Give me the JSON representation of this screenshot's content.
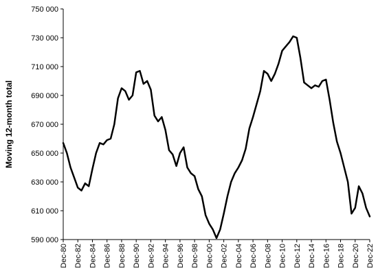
{
  "chart_data": {
    "type": "line",
    "title": "",
    "xlabel": "",
    "ylabel": "Moving 12-month total",
    "ylim": [
      590000,
      750000
    ],
    "yticks": [
      590000,
      610000,
      630000,
      650000,
      670000,
      690000,
      710000,
      730000,
      750000
    ],
    "ytick_labels": [
      "590 000",
      "610 000",
      "630 000",
      "650 000",
      "670 000",
      "690 000",
      "710 000",
      "730 000",
      "750 000"
    ],
    "xlim": [
      "1980-12",
      "2022-12"
    ],
    "xtick_labels": [
      "Dec-80",
      "Dec-82",
      "Dec-84",
      "Dec-86",
      "Dec-88",
      "Dec-90",
      "Dec-92",
      "Dec-94",
      "Dec-96",
      "Dec-98",
      "Dec-00",
      "Dec-02",
      "Dec-04",
      "Dec-06",
      "Dec-08",
      "Dec-10",
      "Dec-12",
      "Dec-14",
      "Dec-16",
      "Dec-18",
      "Dec-20",
      "Dec-22"
    ],
    "grid": false,
    "legend": "none",
    "line_color": "#000000",
    "series": [
      {
        "x": [
          "1980-12",
          "1981-06",
          "1981-12",
          "1982-06",
          "1982-12",
          "1983-06",
          "1983-12",
          "1984-06",
          "1984-12",
          "1985-06",
          "1985-12",
          "1986-06",
          "1986-12",
          "1987-06",
          "1987-12",
          "1988-06",
          "1988-12",
          "1989-06",
          "1989-12",
          "1990-06",
          "1990-12",
          "1991-06",
          "1991-12",
          "1992-06",
          "1992-12",
          "1993-06",
          "1993-12",
          "1994-06",
          "1994-12",
          "1995-06",
          "1995-12",
          "1996-06",
          "1996-12",
          "1997-06",
          "1997-12",
          "1998-06",
          "1998-12",
          "1999-06",
          "1999-12",
          "2000-06",
          "2000-12",
          "2001-06",
          "2001-12",
          "2002-06",
          "2002-12",
          "2003-06",
          "2003-12",
          "2004-06",
          "2004-12",
          "2005-06",
          "2005-12",
          "2006-06",
          "2006-12",
          "2007-06",
          "2007-12",
          "2008-06",
          "2008-12",
          "2009-06",
          "2009-12",
          "2010-06",
          "2010-12",
          "2011-06",
          "2011-12",
          "2012-06",
          "2012-12",
          "2013-06",
          "2013-12",
          "2014-06",
          "2014-12",
          "2015-06",
          "2015-12",
          "2016-06",
          "2016-12",
          "2017-06",
          "2017-12",
          "2018-06",
          "2018-12",
          "2019-06",
          "2019-12",
          "2020-06",
          "2020-12",
          "2021-06",
          "2021-12",
          "2022-06",
          "2022-12"
        ],
        "values": [
          657000,
          650000,
          640000,
          633000,
          626000,
          624000,
          629000,
          627000,
          639000,
          650000,
          657000,
          656000,
          659000,
          660000,
          670000,
          688000,
          695000,
          693000,
          687000,
          690000,
          706000,
          707000,
          698000,
          700000,
          694000,
          676000,
          672000,
          675000,
          666000,
          652000,
          649000,
          641000,
          650000,
          654000,
          640000,
          636000,
          634000,
          625000,
          620000,
          607000,
          601000,
          597000,
          591000,
          597000,
          608000,
          620000,
          630000,
          636000,
          640000,
          645000,
          653000,
          667000,
          675000,
          684000,
          693000,
          707000,
          705000,
          700000,
          705000,
          712000,
          721000,
          724000,
          727000,
          731000,
          730000,
          716000,
          699000,
          697000,
          695000,
          697000,
          696000,
          700000,
          701000,
          687000,
          671000,
          658000,
          650000,
          640000,
          630000,
          608000,
          612000,
          627000,
          622000,
          612000,
          606000
        ]
      }
    ]
  }
}
